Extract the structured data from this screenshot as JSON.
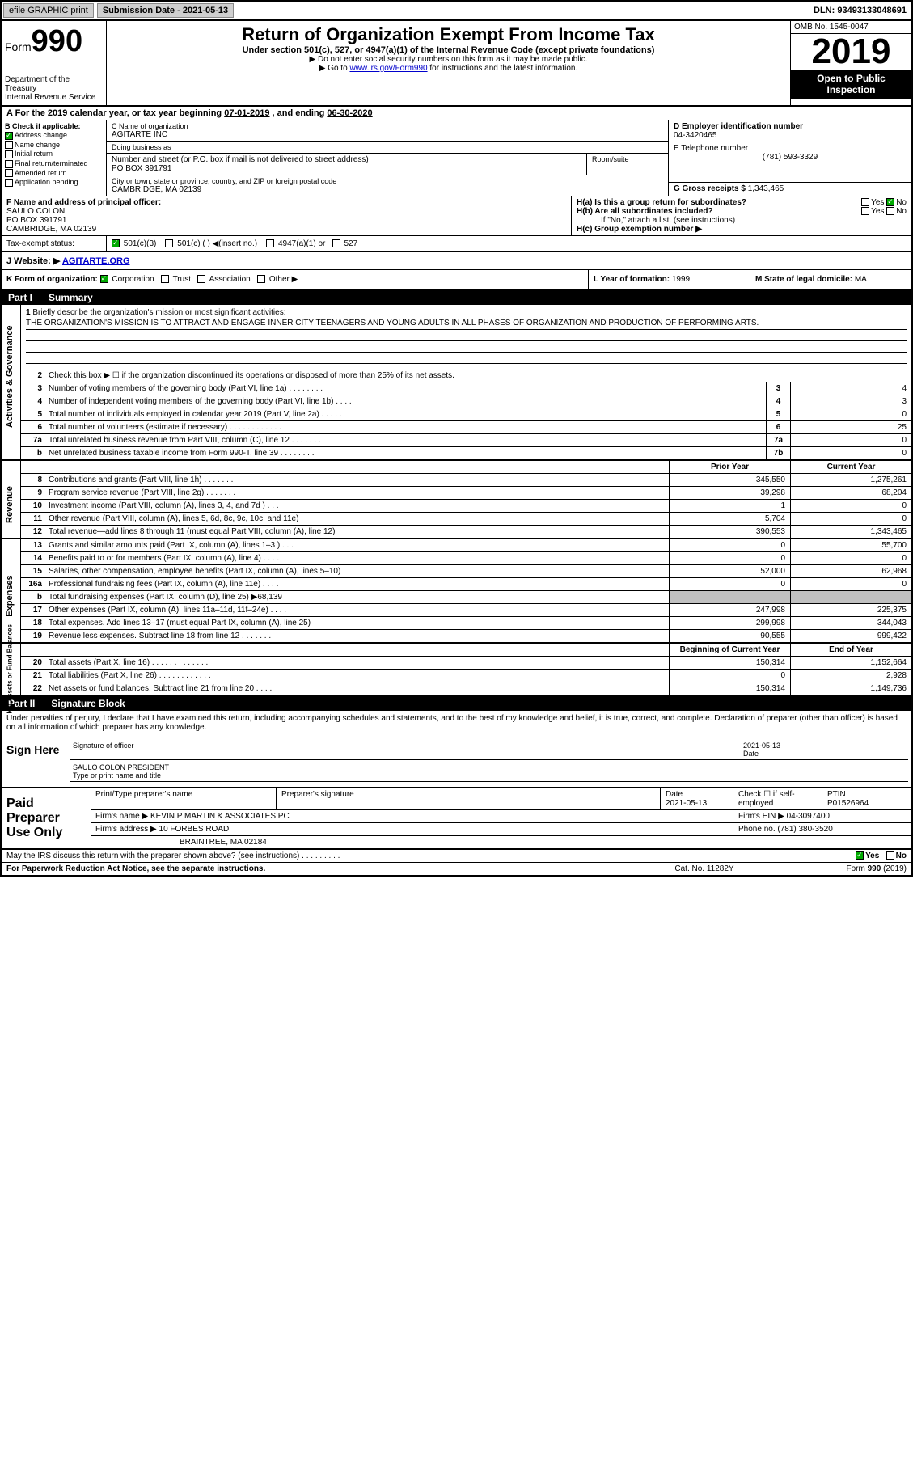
{
  "topbar": {
    "efile": "efile GRAPHIC print",
    "subdate_label": "Submission Date - ",
    "subdate": "2021-05-13",
    "dln_label": "DLN: ",
    "dln": "93493133048691"
  },
  "header": {
    "form": "Form",
    "form_num": "990",
    "dept": "Department of the Treasury\nInternal Revenue Service",
    "title": "Return of Organization Exempt From Income Tax",
    "subtitle": "Under section 501(c), 527, or 4947(a)(1) of the Internal Revenue Code (except private foundations)",
    "note1": "▶ Do not enter social security numbers on this form as it may be made public.",
    "note2_pre": "▶ Go to ",
    "note2_link": "www.irs.gov/Form990",
    "note2_post": " for instructions and the latest information.",
    "omb": "OMB No. 1545-0047",
    "year": "2019",
    "open": "Open to Public Inspection"
  },
  "period": {
    "text_a": "A For the 2019 calendar year, or tax year beginning ",
    "begin": "07-01-2019",
    "text_b": " , and ending ",
    "end": "06-30-2020"
  },
  "box_b": {
    "label": "B Check if applicable:",
    "opts": [
      "Address change",
      "Name change",
      "Initial return",
      "Final return/terminated",
      "Amended return",
      "Application pending"
    ],
    "checked": [
      true,
      false,
      false,
      false,
      false,
      false
    ]
  },
  "box_c": {
    "name_lbl": "C Name of organization",
    "name": "AGITARTE INC",
    "dba_lbl": "Doing business as",
    "dba": "",
    "addr_lbl": "Number and street (or P.O. box if mail is not delivered to street address)",
    "room_lbl": "Room/suite",
    "addr": "PO BOX 391791",
    "city_lbl": "City or town, state or province, country, and ZIP or foreign postal code",
    "city": "CAMBRIDGE, MA  02139"
  },
  "box_d": {
    "ein_lbl": "D Employer identification number",
    "ein": "04-3420465",
    "phone_lbl": "E Telephone number",
    "phone": "(781) 593-3329",
    "gross_lbl": "G Gross receipts $ ",
    "gross": "1,343,465"
  },
  "box_f": {
    "lbl": "F Name and address of principal officer:",
    "name": "SAULO COLON",
    "addr1": "PO BOX 391791",
    "addr2": "CAMBRIDGE, MA  02139"
  },
  "box_h": {
    "ha": "H(a) Is this a group return for subordinates?",
    "hb": "H(b) Are all subordinates included?",
    "hb_note": "If \"No,\" attach a list. (see instructions)",
    "hc": "H(c) Group exemption number ▶"
  },
  "tax_status": {
    "lbl": "Tax-exempt status:",
    "opts": [
      "501(c)(3)",
      "501(c) ( ) ◀(insert no.)",
      "4947(a)(1) or",
      "527"
    ]
  },
  "website": {
    "lbl": "J Website: ▶",
    "val": "AGITARTE.ORG"
  },
  "klm": {
    "k": "K Form of organization:",
    "k_opts": [
      "Corporation",
      "Trust",
      "Association",
      "Other ▶"
    ],
    "l_lbl": "L Year of formation: ",
    "l_val": "1999",
    "m_lbl": "M State of legal domicile: ",
    "m_val": "MA"
  },
  "part1": {
    "num": "Part I",
    "title": "Summary"
  },
  "mission": {
    "num": "1",
    "lbl": "Briefly describe the organization's mission or most significant activities:",
    "text": "THE ORGANIZATION'S MISSION IS TO ATTRACT AND ENGAGE INNER CITY TEENAGERS AND YOUNG ADULTS IN ALL PHASES OF ORGANIZATION AND PRODUCTION OF PERFORMING ARTS."
  },
  "governance": {
    "label": "Activities & Governance",
    "line2": "Check this box ▶ ☐ if the organization discontinued its operations or disposed of more than 25% of its net assets.",
    "lines": [
      {
        "n": "3",
        "d": "Number of voting members of the governing body (Part VI, line 1a)   .    .    .    .    .    .    .    .",
        "box": "3",
        "v": "4"
      },
      {
        "n": "4",
        "d": "Number of independent voting members of the governing body (Part VI, line 1b)   .    .    .    .",
        "box": "4",
        "v": "3"
      },
      {
        "n": "5",
        "d": "Total number of individuals employed in calendar year 2019 (Part V, line 2a)   .    .    .    .    .",
        "box": "5",
        "v": "0"
      },
      {
        "n": "6",
        "d": "Total number of volunteers (estimate if necessary)   .    .    .    .    .    .    .    .    .    .    .    .",
        "box": "6",
        "v": "25"
      },
      {
        "n": "7a",
        "d": "Total unrelated business revenue from Part VIII, column (C), line 12   .    .    .    .    .    .    .",
        "box": "7a",
        "v": "0"
      },
      {
        "n": "b",
        "d": "Net unrelated business taxable income from Form 990-T, line 39   .    .    .    .    .    .    .    .",
        "box": "7b",
        "v": "0"
      }
    ]
  },
  "revenue": {
    "label": "Revenue",
    "py_lbl": "Prior Year",
    "cy_lbl": "Current Year",
    "lines": [
      {
        "n": "8",
        "d": "Contributions and grants (Part VIII, line 1h)   .    .    .    .    .    .    .",
        "py": "345,550",
        "cy": "1,275,261"
      },
      {
        "n": "9",
        "d": "Program service revenue (Part VIII, line 2g)   .    .    .    .    .    .    .",
        "py": "39,298",
        "cy": "68,204"
      },
      {
        "n": "10",
        "d": "Investment income (Part VIII, column (A), lines 3, 4, and 7d )   .    .    .",
        "py": "1",
        "cy": "0"
      },
      {
        "n": "11",
        "d": "Other revenue (Part VIII, column (A), lines 5, 6d, 8c, 9c, 10c, and 11e)",
        "py": "5,704",
        "cy": "0"
      },
      {
        "n": "12",
        "d": "Total revenue—add lines 8 through 11 (must equal Part VIII, column (A), line 12)",
        "py": "390,553",
        "cy": "1,343,465"
      }
    ]
  },
  "expenses": {
    "label": "Expenses",
    "lines": [
      {
        "n": "13",
        "d": "Grants and similar amounts paid (Part IX, column (A), lines 1–3 )   .    .    .",
        "py": "0",
        "cy": "55,700"
      },
      {
        "n": "14",
        "d": "Benefits paid to or for members (Part IX, column (A), line 4)   .    .    .    .",
        "py": "0",
        "cy": "0"
      },
      {
        "n": "15",
        "d": "Salaries, other compensation, employee benefits (Part IX, column (A), lines 5–10)",
        "py": "52,000",
        "cy": "62,968"
      },
      {
        "n": "16a",
        "d": "Professional fundraising fees (Part IX, column (A), line 11e)   .    .    .    .",
        "py": "0",
        "cy": "0"
      },
      {
        "n": "b",
        "d": "Total fundraising expenses (Part IX, column (D), line 25) ▶68,139",
        "py": "",
        "cy": "",
        "shaded": true
      },
      {
        "n": "17",
        "d": "Other expenses (Part IX, column (A), lines 11a–11d, 11f–24e)   .    .    .    .",
        "py": "247,998",
        "cy": "225,375"
      },
      {
        "n": "18",
        "d": "Total expenses. Add lines 13–17 (must equal Part IX, column (A), line 25)",
        "py": "299,998",
        "cy": "344,043"
      },
      {
        "n": "19",
        "d": "Revenue less expenses. Subtract line 18 from line 12   .    .    .    .    .    .    .",
        "py": "90,555",
        "cy": "999,422"
      }
    ]
  },
  "netassets": {
    "label": "Net Assets or Fund Balances",
    "by_lbl": "Beginning of Current Year",
    "ey_lbl": "End of Year",
    "lines": [
      {
        "n": "20",
        "d": "Total assets (Part X, line 16)   .    .    .    .    .    .    .    .    .    .    .    .    .",
        "py": "150,314",
        "cy": "1,152,664"
      },
      {
        "n": "21",
        "d": "Total liabilities (Part X, line 26)   .    .    .    .    .    .    .    .    .    .    .    .",
        "py": "0",
        "cy": "2,928"
      },
      {
        "n": "22",
        "d": "Net assets or fund balances. Subtract line 21 from line 20   .    .    .    .",
        "py": "150,314",
        "cy": "1,149,736"
      }
    ]
  },
  "part2": {
    "num": "Part II",
    "title": "Signature Block"
  },
  "sig": {
    "decl": "Under penalties of perjury, I declare that I have examined this return, including accompanying schedules and statements, and to the best of my knowledge and belief, it is true, correct, and complete. Declaration of preparer (other than officer) is based on all information of which preparer has any knowledge.",
    "sign_here": "Sign Here",
    "sig_lbl": "Signature of officer",
    "date_lbl": "Date",
    "date": "2021-05-13",
    "name": "SAULO COLON PRESIDENT",
    "name_lbl": "Type or print name and title"
  },
  "prep": {
    "label": "Paid Preparer Use Only",
    "h1": "Print/Type preparer's name",
    "h2": "Preparer's signature",
    "h3": "Date",
    "h3v": "2021-05-13",
    "h4": "Check ☐ if self-employed",
    "h5": "PTIN",
    "h5v": "P01526964",
    "firm_lbl": "Firm's name    ▶",
    "firm": "KEVIN P MARTIN & ASSOCIATES PC",
    "ein_lbl": "Firm's EIN ▶",
    "ein": "04-3097400",
    "addr_lbl": "Firm's address ▶",
    "addr1": "10 FORBES ROAD",
    "addr2": "BRAINTREE, MA  02184",
    "phone_lbl": "Phone no. ",
    "phone": "(781) 380-3520"
  },
  "footer": {
    "discuss": "May the IRS discuss this return with the preparer shown above? (see instructions)   .    .    .    .    .    .    .    .    .",
    "yes": "Yes",
    "no": "No",
    "paperwork": "For Paperwork Reduction Act Notice, see the separate instructions.",
    "cat": "Cat. No. 11282Y",
    "formref": "Form 990 (2019)"
  }
}
